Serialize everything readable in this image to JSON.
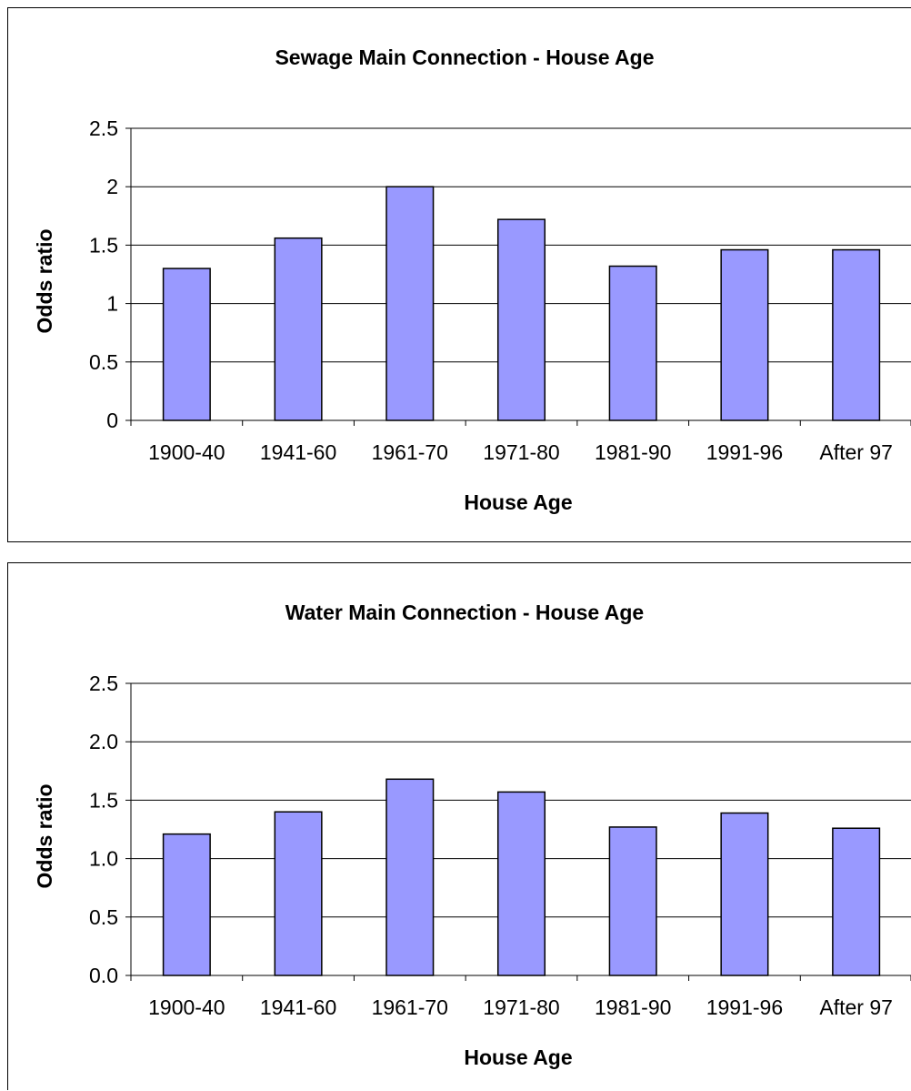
{
  "chart_data": [
    {
      "type": "bar",
      "title": "Sewage Main Connection - House Age",
      "xlabel": "House Age",
      "ylabel": "Odds ratio",
      "categories": [
        "1900-40",
        "1941-60",
        "1961-70",
        "1971-80",
        "1981-90",
        "1991-96",
        "After 97"
      ],
      "values": [
        1.3,
        1.56,
        2.0,
        1.72,
        1.32,
        1.46,
        1.46
      ],
      "ylim": [
        0,
        2.5
      ],
      "yticks": [
        "0",
        "0.5",
        "1",
        "1.5",
        "2",
        "2.5"
      ],
      "grid": true,
      "bar_color": "#9999ff"
    },
    {
      "type": "bar",
      "title": "Water Main Connection - House Age",
      "xlabel": "House Age",
      "ylabel": "Odds ratio",
      "categories": [
        "1900-40",
        "1941-60",
        "1961-70",
        "1971-80",
        "1981-90",
        "1991-96",
        "After 97"
      ],
      "values": [
        1.21,
        1.4,
        1.68,
        1.57,
        1.27,
        1.39,
        1.26
      ],
      "ylim": [
        0,
        2.5
      ],
      "yticks": [
        "0.0",
        "0.5",
        "1.0",
        "1.5",
        "2.0",
        "2.5"
      ],
      "grid": true,
      "bar_color": "#9999ff"
    }
  ]
}
